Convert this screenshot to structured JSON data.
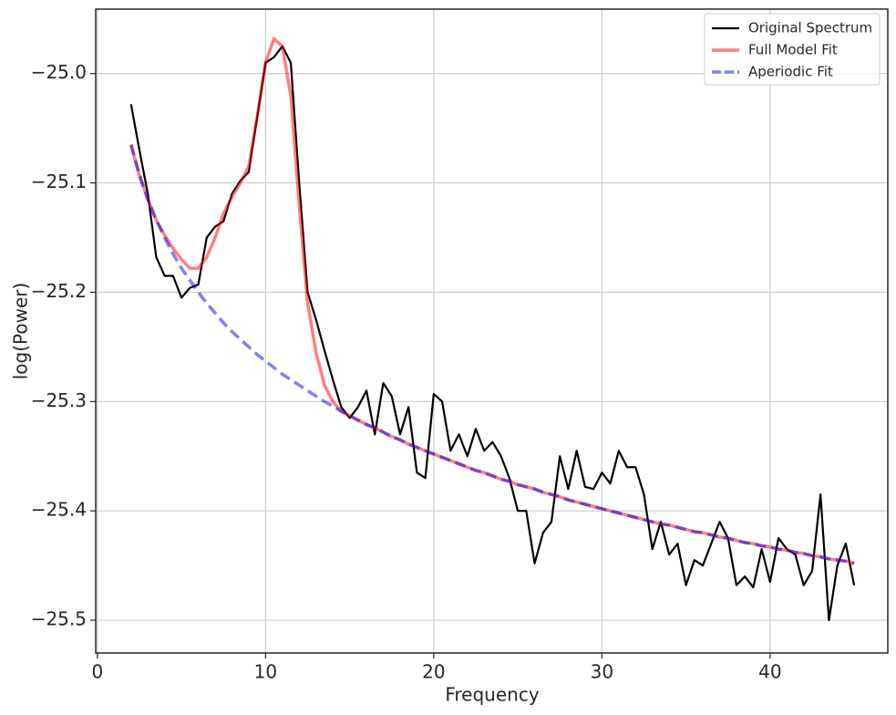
{
  "chart_data": {
    "type": "line",
    "xlabel": "Frequency",
    "ylabel": "log(Power)",
    "xlim": [
      -0.1,
      47.0
    ],
    "ylim": [
      -25.53,
      -24.941
    ],
    "xticks": [
      0,
      10,
      20,
      30,
      40
    ],
    "yticks": [
      {
        "value": -25.0,
        "label": "−25.0"
      },
      {
        "value": -25.1,
        "label": "−25.1"
      },
      {
        "value": -25.2,
        "label": "−25.2"
      },
      {
        "value": -25.3,
        "label": "−25.3"
      },
      {
        "value": -25.4,
        "label": "−25.4"
      },
      {
        "value": -25.5,
        "label": "−25.5"
      }
    ],
    "grid": true,
    "legend": "upper right",
    "x": [
      2,
      2.5,
      3,
      3.5,
      4,
      4.5,
      5,
      5.5,
      6,
      6.5,
      7,
      7.5,
      8,
      8.5,
      9,
      9.5,
      10,
      10.5,
      11,
      11.5,
      12,
      12.5,
      13,
      13.5,
      14,
      14.5,
      15,
      15.5,
      16,
      16.5,
      17,
      17.5,
      18,
      18.5,
      19,
      19.5,
      20,
      20.5,
      21,
      21.5,
      22,
      22.5,
      23,
      23.5,
      24,
      24.5,
      25,
      25.5,
      26,
      26.5,
      27,
      27.5,
      28,
      28.5,
      29,
      29.5,
      30,
      30.5,
      31,
      31.5,
      32,
      32.5,
      33,
      33.5,
      34,
      34.5,
      35,
      35.5,
      36,
      36.5,
      37,
      37.5,
      38,
      38.5,
      39,
      39.5,
      40,
      40.5,
      41,
      41.5,
      42,
      42.5,
      43,
      43.5,
      44,
      44.5,
      45
    ],
    "series": [
      {
        "name": "Original Spectrum",
        "color": "#000000",
        "opacity": 1,
        "linewidth": 2.2,
        "linestyle": "solid",
        "values": [
          -25.028,
          -25.07,
          -25.11,
          -25.168,
          -25.185,
          -25.185,
          -25.205,
          -25.196,
          -25.193,
          -25.15,
          -25.14,
          -25.135,
          -25.11,
          -25.098,
          -25.09,
          -25.04,
          -24.99,
          -24.985,
          -24.975,
          -24.99,
          -25.1,
          -25.2,
          -25.225,
          -25.253,
          -25.28,
          -25.305,
          -25.315,
          -25.305,
          -25.29,
          -25.33,
          -25.283,
          -25.295,
          -25.33,
          -25.305,
          -25.365,
          -25.37,
          -25.293,
          -25.3,
          -25.345,
          -25.33,
          -25.35,
          -25.325,
          -25.345,
          -25.337,
          -25.35,
          -25.37,
          -25.4,
          -25.4,
          -25.448,
          -25.42,
          -25.41,
          -25.35,
          -25.38,
          -25.345,
          -25.378,
          -25.38,
          -25.365,
          -25.375,
          -25.345,
          -25.36,
          -25.36,
          -25.385,
          -25.435,
          -25.41,
          -25.44,
          -25.43,
          -25.468,
          -25.445,
          -25.45,
          -25.43,
          -25.41,
          -25.425,
          -25.468,
          -25.46,
          -25.47,
          -25.435,
          -25.465,
          -25.425,
          -25.435,
          -25.44,
          -25.468,
          -25.455,
          -25.385,
          -25.5,
          -25.45,
          -25.43,
          -25.468
        ]
      },
      {
        "name": "Full Model Fit",
        "color": "#ff0000",
        "opacity": 0.5,
        "linewidth": 3.5,
        "linestyle": "solid",
        "values": [
          -25.065,
          -25.093,
          -25.115,
          -25.134,
          -25.148,
          -25.16,
          -25.17,
          -25.178,
          -25.178,
          -25.168,
          -25.15,
          -25.128,
          -25.113,
          -25.1,
          -25.085,
          -25.04,
          -24.99,
          -24.968,
          -24.975,
          -25.02,
          -25.12,
          -25.21,
          -25.255,
          -25.285,
          -25.3,
          -25.309,
          -25.313,
          -25.317,
          -25.321,
          -25.324,
          -25.328,
          -25.332,
          -25.335,
          -25.339,
          -25.342,
          -25.345,
          -25.348,
          -25.351,
          -25.354,
          -25.357,
          -25.36,
          -25.363,
          -25.365,
          -25.368,
          -25.371,
          -25.373,
          -25.376,
          -25.378,
          -25.38,
          -25.383,
          -25.385,
          -25.387,
          -25.39,
          -25.392,
          -25.394,
          -25.396,
          -25.398,
          -25.4,
          -25.402,
          -25.404,
          -25.406,
          -25.408,
          -25.41,
          -25.412,
          -25.413,
          -25.415,
          -25.417,
          -25.419,
          -25.42,
          -25.422,
          -25.424,
          -25.425,
          -25.427,
          -25.429,
          -25.43,
          -25.432,
          -25.433,
          -25.435,
          -25.436,
          -25.438,
          -25.439,
          -25.441,
          -25.442,
          -25.444,
          -25.445,
          -25.446,
          -25.448
        ]
      },
      {
        "name": "Aperiodic Fit",
        "color": "#0000ff",
        "opacity": 0.5,
        "linewidth": 3.5,
        "linestyle": "dashed",
        "values": [
          -25.065,
          -25.093,
          -25.115,
          -25.134,
          -25.15,
          -25.165,
          -25.178,
          -25.189,
          -25.2,
          -25.21,
          -25.219,
          -25.228,
          -25.236,
          -25.243,
          -25.25,
          -25.257,
          -25.263,
          -25.269,
          -25.275,
          -25.28,
          -25.285,
          -25.29,
          -25.295,
          -25.3,
          -25.304,
          -25.309,
          -25.313,
          -25.317,
          -25.321,
          -25.324,
          -25.328,
          -25.332,
          -25.335,
          -25.339,
          -25.342,
          -25.345,
          -25.348,
          -25.351,
          -25.354,
          -25.357,
          -25.36,
          -25.363,
          -25.365,
          -25.368,
          -25.371,
          -25.373,
          -25.376,
          -25.378,
          -25.38,
          -25.383,
          -25.385,
          -25.387,
          -25.39,
          -25.392,
          -25.394,
          -25.396,
          -25.398,
          -25.4,
          -25.402,
          -25.404,
          -25.406,
          -25.408,
          -25.41,
          -25.412,
          -25.413,
          -25.415,
          -25.417,
          -25.419,
          -25.42,
          -25.422,
          -25.424,
          -25.425,
          -25.427,
          -25.429,
          -25.43,
          -25.432,
          -25.433,
          -25.435,
          -25.436,
          -25.438,
          -25.439,
          -25.441,
          -25.442,
          -25.444,
          -25.445,
          -25.446,
          -25.448
        ]
      }
    ]
  }
}
